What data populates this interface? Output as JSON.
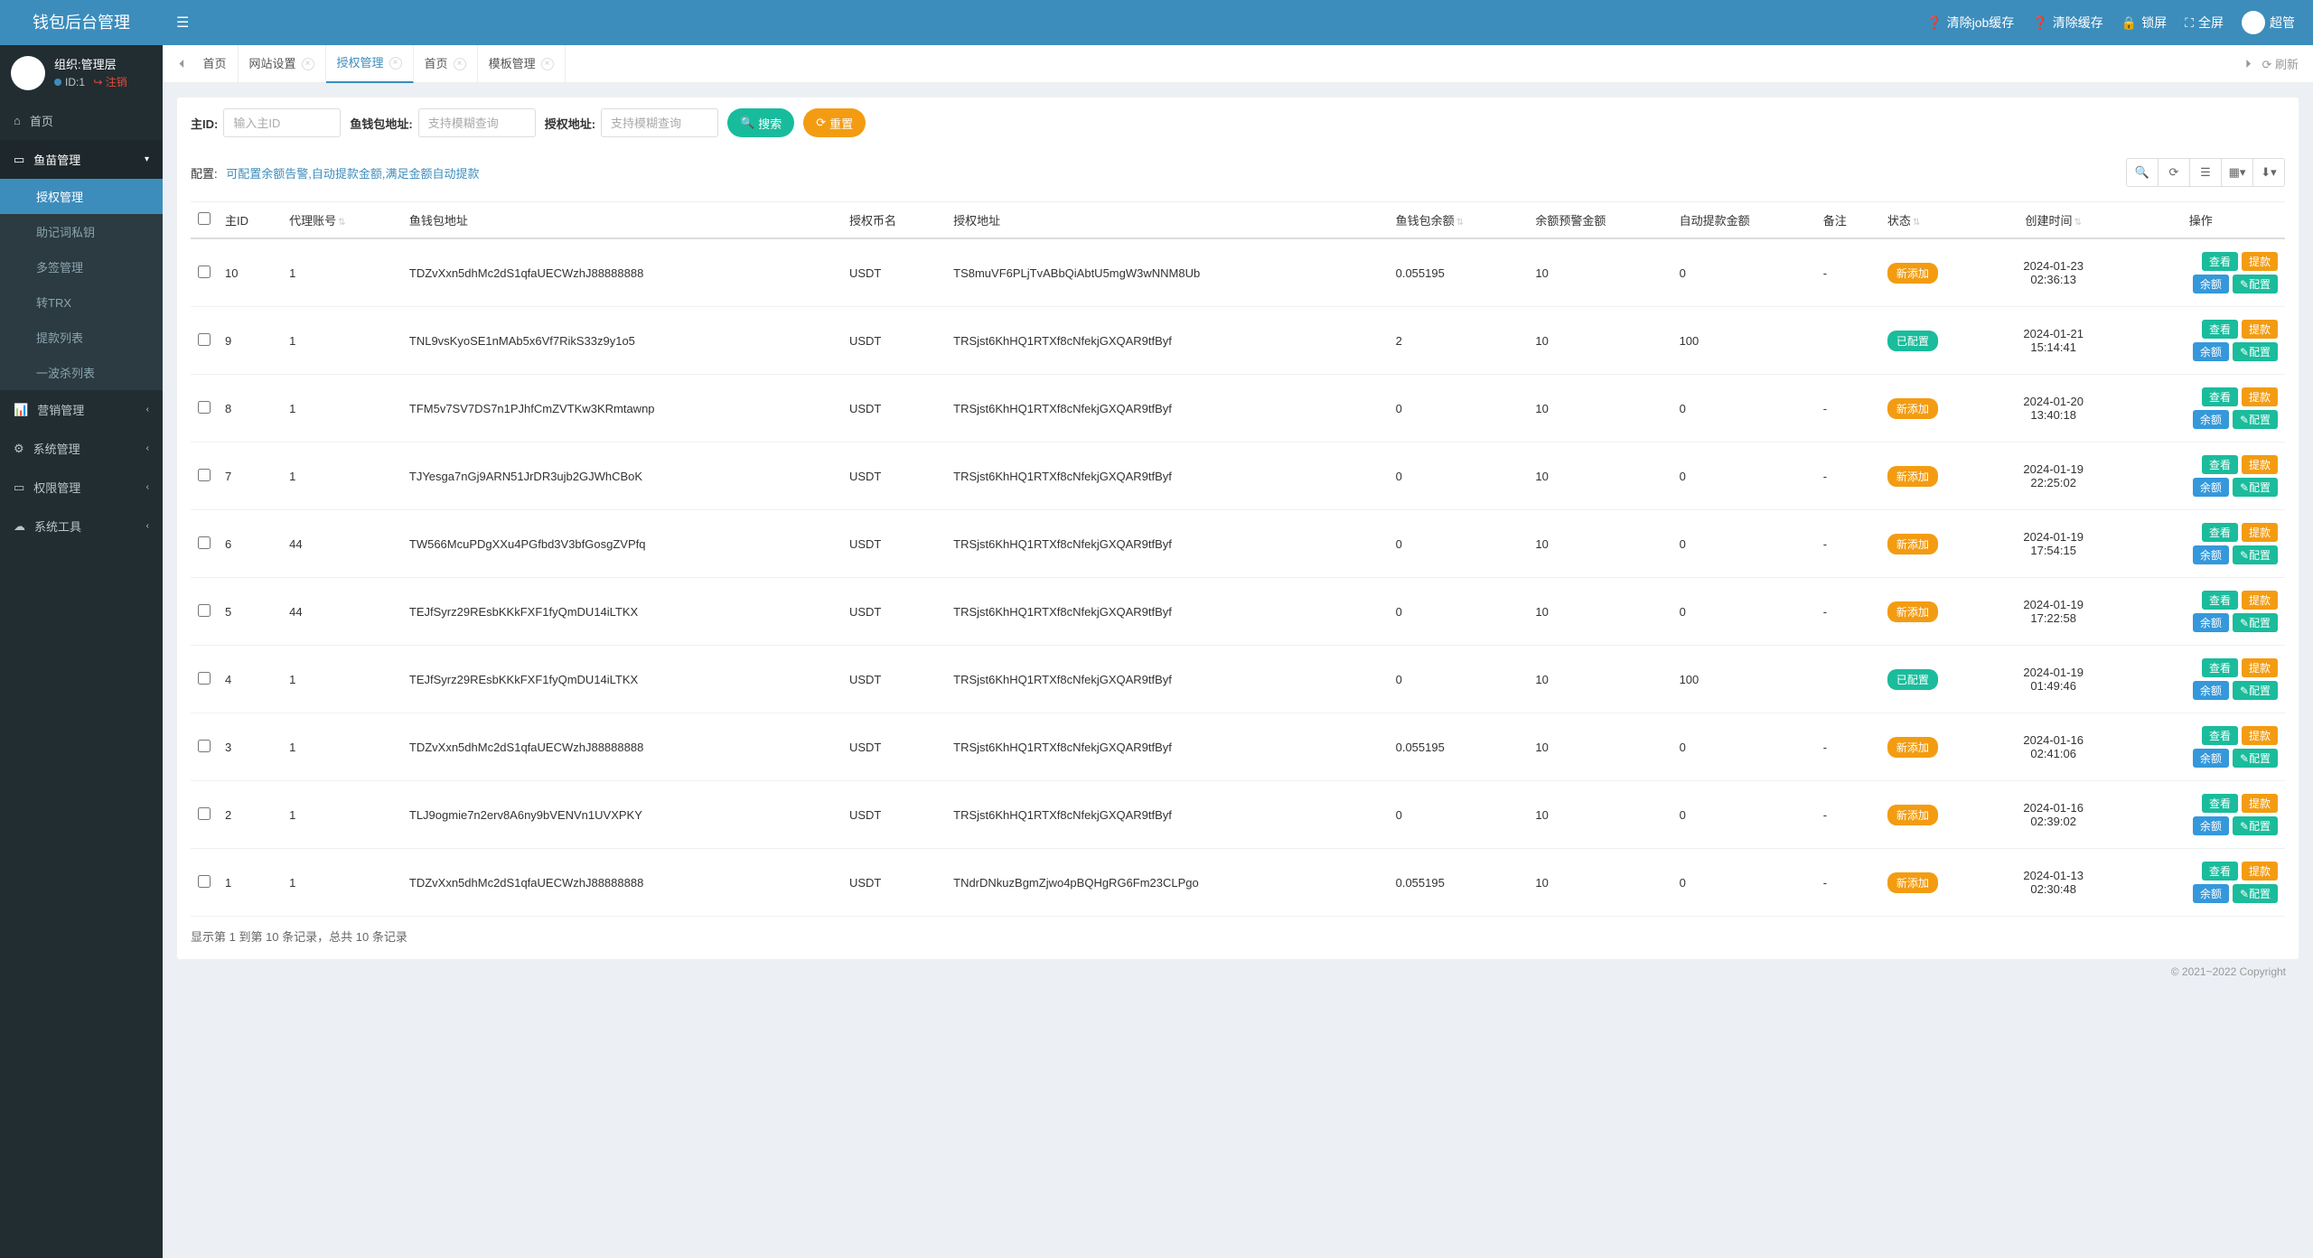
{
  "brand": "钱包后台管理",
  "header": {
    "clear_job": "清除job缓存",
    "clear_cache": "清除缓存",
    "lock": "锁屏",
    "fullscreen": "全屏",
    "username": "超管"
  },
  "user_panel": {
    "org_label": "组织:管理层",
    "id_label": "ID:1",
    "logout": "注销"
  },
  "sidebar": {
    "home": "首页",
    "fish_mgmt": "鱼苗管理",
    "sub": {
      "auth": "授权管理",
      "mnemonic": "助记词私钥",
      "multisig": "多签管理",
      "trx": "转TRX",
      "withdraw": "提款列表",
      "wave": "一波杀列表"
    },
    "marketing": "营销管理",
    "system": "系统管理",
    "perm": "权限管理",
    "tools": "系统工具"
  },
  "tabs": {
    "home": "首页",
    "site": "网站设置",
    "auth": "授权管理",
    "home2": "首页",
    "template": "模板管理",
    "refresh": "刷新"
  },
  "filters": {
    "main_id_label": "主ID:",
    "main_id_ph": "输入主ID",
    "fish_addr_label": "鱼钱包地址:",
    "fish_addr_ph": "支持模糊查询",
    "auth_addr_label": "授权地址:",
    "auth_addr_ph": "支持模糊查询",
    "search": "搜索",
    "reset": "重置"
  },
  "config": {
    "label": "配置:",
    "text": "可配置余额告警,自动提款金额,满足金额自动提款"
  },
  "columns": {
    "main_id": "主ID",
    "agent": "代理账号",
    "fish_addr": "鱼钱包地址",
    "auth_coin": "授权币名",
    "auth_addr": "授权地址",
    "fish_balance": "鱼钱包余额",
    "warn_amount": "余额预警金额",
    "auto_amount": "自动提款金额",
    "remark": "备注",
    "status": "状态",
    "created": "创建时间",
    "ops": "操作"
  },
  "status_labels": {
    "new": "新添加",
    "configured": "已配置"
  },
  "op_labels": {
    "view": "查看",
    "withdraw": "提款",
    "balance": "余额",
    "config": "配置"
  },
  "rows": [
    {
      "id": "10",
      "agent": "1",
      "fish_addr": "TDZvXxn5dhMc2dS1qfaUECWzhJ88888888",
      "coin": "USDT",
      "auth_addr": "TS8muVF6PLjTvABbQiAbtU5mgW3wNNM8Ub",
      "balance": "0.055195",
      "warn": "10",
      "auto": "0",
      "remark": "-",
      "status": "new",
      "created_date": "2024-01-23",
      "created_time": "02:36:13"
    },
    {
      "id": "9",
      "agent": "1",
      "fish_addr": "TNL9vsKyoSE1nMAb5x6Vf7RikS33z9y1o5",
      "coin": "USDT",
      "auth_addr": "TRSjst6KhHQ1RTXf8cNfekjGXQAR9tfByf",
      "balance": "2",
      "warn": "10",
      "auto": "100",
      "remark": "",
      "status": "configured",
      "created_date": "2024-01-21",
      "created_time": "15:14:41"
    },
    {
      "id": "8",
      "agent": "1",
      "fish_addr": "TFM5v7SV7DS7n1PJhfCmZVTKw3KRmtawnp",
      "coin": "USDT",
      "auth_addr": "TRSjst6KhHQ1RTXf8cNfekjGXQAR9tfByf",
      "balance": "0",
      "warn": "10",
      "auto": "0",
      "remark": "-",
      "status": "new",
      "created_date": "2024-01-20",
      "created_time": "13:40:18"
    },
    {
      "id": "7",
      "agent": "1",
      "fish_addr": "TJYesga7nGj9ARN51JrDR3ujb2GJWhCBoK",
      "coin": "USDT",
      "auth_addr": "TRSjst6KhHQ1RTXf8cNfekjGXQAR9tfByf",
      "balance": "0",
      "warn": "10",
      "auto": "0",
      "remark": "-",
      "status": "new",
      "created_date": "2024-01-19",
      "created_time": "22:25:02"
    },
    {
      "id": "6",
      "agent": "44",
      "fish_addr": "TW566McuPDgXXu4PGfbd3V3bfGosgZVPfq",
      "coin": "USDT",
      "auth_addr": "TRSjst6KhHQ1RTXf8cNfekjGXQAR9tfByf",
      "balance": "0",
      "warn": "10",
      "auto": "0",
      "remark": "-",
      "status": "new",
      "created_date": "2024-01-19",
      "created_time": "17:54:15"
    },
    {
      "id": "5",
      "agent": "44",
      "fish_addr": "TEJfSyrz29REsbKKkFXF1fyQmDU14iLTKX",
      "coin": "USDT",
      "auth_addr": "TRSjst6KhHQ1RTXf8cNfekjGXQAR9tfByf",
      "balance": "0",
      "warn": "10",
      "auto": "0",
      "remark": "-",
      "status": "new",
      "created_date": "2024-01-19",
      "created_time": "17:22:58"
    },
    {
      "id": "4",
      "agent": "1",
      "fish_addr": "TEJfSyrz29REsbKKkFXF1fyQmDU14iLTKX",
      "coin": "USDT",
      "auth_addr": "TRSjst6KhHQ1RTXf8cNfekjGXQAR9tfByf",
      "balance": "0",
      "warn": "10",
      "auto": "100",
      "remark": "",
      "status": "configured",
      "created_date": "2024-01-19",
      "created_time": "01:49:46"
    },
    {
      "id": "3",
      "agent": "1",
      "fish_addr": "TDZvXxn5dhMc2dS1qfaUECWzhJ88888888",
      "coin": "USDT",
      "auth_addr": "TRSjst6KhHQ1RTXf8cNfekjGXQAR9tfByf",
      "balance": "0.055195",
      "warn": "10",
      "auto": "0",
      "remark": "-",
      "status": "new",
      "created_date": "2024-01-16",
      "created_time": "02:41:06"
    },
    {
      "id": "2",
      "agent": "1",
      "fish_addr": "TLJ9ogmie7n2erv8A6ny9bVENVn1UVXPKY",
      "coin": "USDT",
      "auth_addr": "TRSjst6KhHQ1RTXf8cNfekjGXQAR9tfByf",
      "balance": "0",
      "warn": "10",
      "auto": "0",
      "remark": "-",
      "status": "new",
      "created_date": "2024-01-16",
      "created_time": "02:39:02"
    },
    {
      "id": "1",
      "agent": "1",
      "fish_addr": "TDZvXxn5dhMc2dS1qfaUECWzhJ88888888",
      "coin": "USDT",
      "auth_addr": "TNdrDNkuzBgmZjwo4pBQHgRG6Fm23CLPgo",
      "balance": "0.055195",
      "warn": "10",
      "auto": "0",
      "remark": "-",
      "status": "new",
      "created_date": "2024-01-13",
      "created_time": "02:30:48"
    }
  ],
  "pagination": "显示第 1 到第 10 条记录，总共 10 条记录",
  "copyright": "© 2021~2022 Copyright"
}
